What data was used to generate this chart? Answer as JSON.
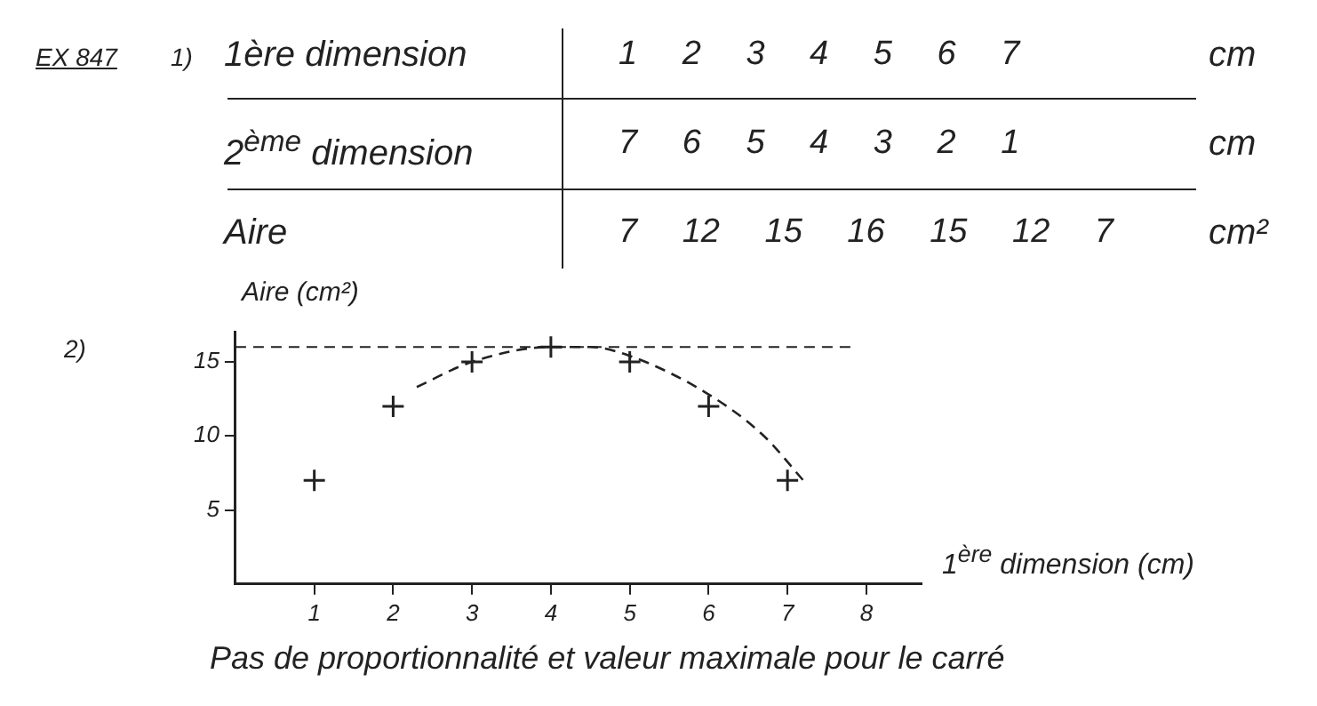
{
  "chart_data": {
    "type": "scatter",
    "ylabel": "Aire (cm²)",
    "xlabel": "1$^{ère}$ dimension (cm)",
    "annotations": [
      "EX 847",
      "1)",
      "2)",
      "1ère dimension",
      "2$^{ème}$ dimension",
      "Aire",
      "cm",
      "cm",
      "cm²",
      "1 2 3 4 5 6 7",
      "7 6 5 4 3 2 1",
      "7 12 15 16 15 12 7",
      "Pas de proportionnalité et valeur maximale pour le carré"
    ],
    "series": [
      {
        "color": "#222222",
        "marker": "cross",
        "x": [
          1,
          2,
          3,
          4,
          5,
          6,
          7
        ],
        "values": [
          7,
          12,
          15,
          16,
          15,
          12,
          7
        ]
      },
      {
        "type": "line",
        "color": "#222222",
        "marker": "none",
        "line_style": "dashed",
        "x": [
          2.3,
          3,
          4,
          4.5,
          5,
          6,
          6.7,
          7.2
        ],
        "values": [
          13.3,
          15,
          16,
          16,
          15.4,
          12.8,
          10,
          7
        ]
      }
    ],
    "grid": false,
    "legend": false,
    "xlim": [
      0,
      8.7
    ],
    "ylim": [
      0,
      17
    ],
    "xticks": [
      1,
      2,
      3,
      4,
      5,
      6,
      7,
      8
    ],
    "yticks": [
      5,
      10,
      15
    ],
    "ref_lines": [
      {
        "axis": "y",
        "value": 16,
        "color": "#222222",
        "line_style": "dashed"
      }
    ]
  }
}
